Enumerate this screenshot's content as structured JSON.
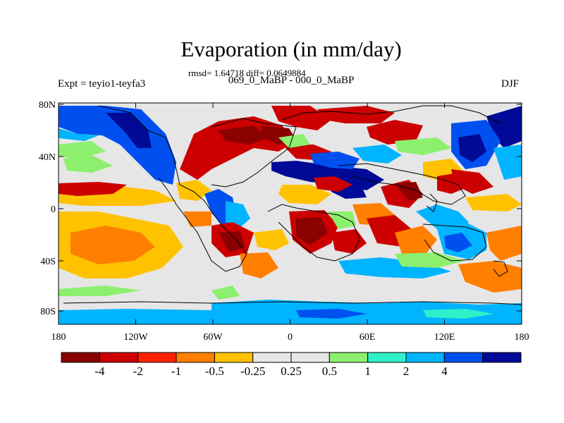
{
  "title": "Evaporation (in mm/day)",
  "stats": "rmsd= 1.64718 diff= 0.0649884",
  "difference_label": "069_0_MaBP - 000_0_MaBP",
  "experiment": "Expt = teyio1-teyfa3",
  "season": "DJF",
  "axes": {
    "y_ticks": [
      "80N",
      "40N",
      "0",
      "40S",
      "80S"
    ],
    "x_ticks": [
      "180",
      "120W",
      "60W",
      "0",
      "60E",
      "120E",
      "180"
    ]
  },
  "colorbar": {
    "colors": [
      "#8b0000",
      "#cc0000",
      "#ff2200",
      "#ff7f00",
      "#ffc200",
      "#e6e6e6",
      "#e6e6e6",
      "#8cf06e",
      "#2ff0c8",
      "#00b4ff",
      "#0050f0",
      "#000a96"
    ],
    "labels": [
      "-4",
      "-2",
      "-1",
      "-0.5",
      "-0.25",
      "0.25",
      "0.5",
      "1",
      "2",
      "4"
    ]
  },
  "map_palette": {
    "neutral": "#e6e6e6",
    "dark_red": "#8b0000",
    "red": "#cc0000",
    "red_orange": "#ff2200",
    "orange": "#ff7f00",
    "yellow": "#ffc200",
    "light_green": "#8cf06e",
    "cyan": "#2ff0c8",
    "sky_blue": "#00b4ff",
    "blue": "#0050f0",
    "navy": "#000a96"
  }
}
